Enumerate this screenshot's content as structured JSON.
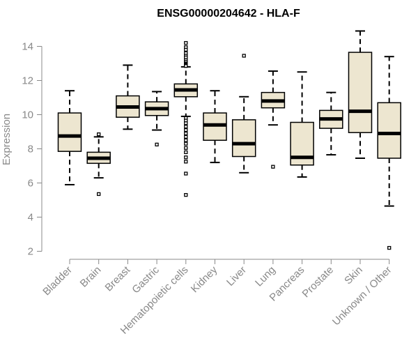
{
  "chart_data": {
    "type": "box",
    "title": "ENSG00000204642 - HLA-F",
    "xlabel": "",
    "ylabel": "Expression",
    "ylim": [
      2,
      14.5
    ],
    "yticks": [
      2,
      4,
      6,
      8,
      10,
      12,
      14
    ],
    "grid": false,
    "legend": "none",
    "colors": {
      "box_fill": "#ede6d0",
      "box_stroke": "#000000",
      "axis": "#888888",
      "text": "#888888",
      "title": "#000000"
    },
    "categories": [
      "Bladder",
      "Brain",
      "Breast",
      "Gastric",
      "Hematopoietic cells",
      "Kidney",
      "Liver",
      "Lung",
      "Pancreas",
      "Prostate",
      "Skin",
      "Unknown / Other"
    ],
    "boxes": [
      {
        "label": "Bladder",
        "whisker_low": 5.9,
        "q1": 7.85,
        "median": 8.75,
        "q3": 10.1,
        "whisker_high": 11.4,
        "outliers": []
      },
      {
        "label": "Brain",
        "whisker_low": 6.3,
        "q1": 7.15,
        "median": 7.45,
        "q3": 7.8,
        "whisker_high": 8.7,
        "outliers": [
          8.85,
          5.35
        ]
      },
      {
        "label": "Breast",
        "whisker_low": 9.15,
        "q1": 9.85,
        "median": 10.45,
        "q3": 11.1,
        "whisker_high": 12.9,
        "outliers": []
      },
      {
        "label": "Gastric",
        "whisker_low": 9.1,
        "q1": 9.95,
        "median": 10.35,
        "q3": 10.75,
        "whisker_high": 11.35,
        "outliers": [
          8.25
        ]
      },
      {
        "label": "Hematopoietic cells",
        "whisker_low": 9.9,
        "q1": 11.05,
        "median": 11.45,
        "q3": 11.8,
        "whisker_high": 12.8,
        "outliers": [
          14.2,
          13.95,
          13.8,
          13.6,
          13.45,
          13.35,
          13.2,
          13.1,
          13.0,
          12.95,
          12.9,
          12.85,
          9.8,
          9.65,
          9.5,
          9.3,
          9.1,
          8.9,
          8.7,
          8.5,
          8.3,
          8.05,
          7.8,
          7.5,
          7.25,
          6.55,
          5.3
        ]
      },
      {
        "label": "Kidney",
        "whisker_low": 7.2,
        "q1": 8.5,
        "median": 9.4,
        "q3": 10.1,
        "whisker_high": 11.4,
        "outliers": []
      },
      {
        "label": "Liver",
        "whisker_low": 6.6,
        "q1": 7.55,
        "median": 8.3,
        "q3": 9.7,
        "whisker_high": 11.05,
        "outliers": [
          13.45
        ]
      },
      {
        "label": "Lung",
        "whisker_low": 9.4,
        "q1": 10.4,
        "median": 10.8,
        "q3": 11.3,
        "whisker_high": 12.55,
        "outliers": [
          6.95
        ]
      },
      {
        "label": "Pancreas",
        "whisker_low": 6.35,
        "q1": 7.05,
        "median": 7.5,
        "q3": 9.55,
        "whisker_high": 12.5,
        "outliers": []
      },
      {
        "label": "Prostate",
        "whisker_low": 7.65,
        "q1": 9.2,
        "median": 9.75,
        "q3": 10.25,
        "whisker_high": 11.3,
        "outliers": []
      },
      {
        "label": "Skin",
        "whisker_low": 7.45,
        "q1": 8.95,
        "median": 10.2,
        "q3": 13.65,
        "whisker_high": 14.9,
        "outliers": []
      },
      {
        "label": "Unknown / Other",
        "whisker_low": 4.65,
        "q1": 7.45,
        "median": 8.9,
        "q3": 10.7,
        "whisker_high": 13.4,
        "outliers": [
          2.2
        ]
      }
    ]
  }
}
